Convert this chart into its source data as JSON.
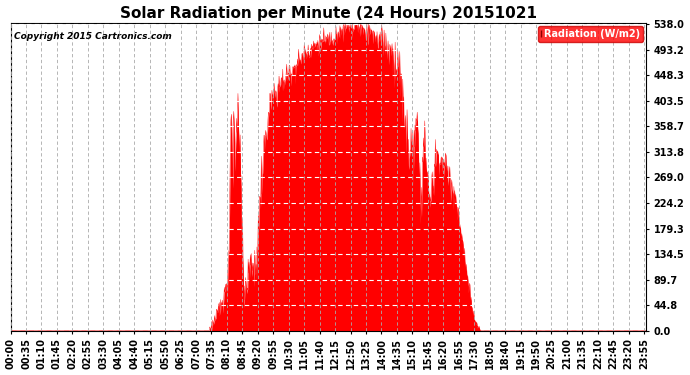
{
  "title": "Solar Radiation per Minute (24 Hours) 20151021",
  "copyright": "Copyright 2015 Cartronics.com",
  "legend_label": "Radiation (W/m2)",
  "yticks": [
    0.0,
    44.8,
    89.7,
    134.5,
    179.3,
    224.2,
    269.0,
    313.8,
    358.7,
    403.5,
    448.3,
    493.2,
    538.0
  ],
  "ymax": 538.0,
  "ymin": 0.0,
  "fill_color": "#FF0000",
  "line_color": "#FF0000",
  "background_color": "#FFFFFF",
  "grid_x_color": "#AAAAAA",
  "grid_y_color": "#FFFFFF",
  "dashed_zero_color": "#FF0000",
  "title_fontsize": 11,
  "tick_fontsize": 7,
  "tick_interval": 35
}
